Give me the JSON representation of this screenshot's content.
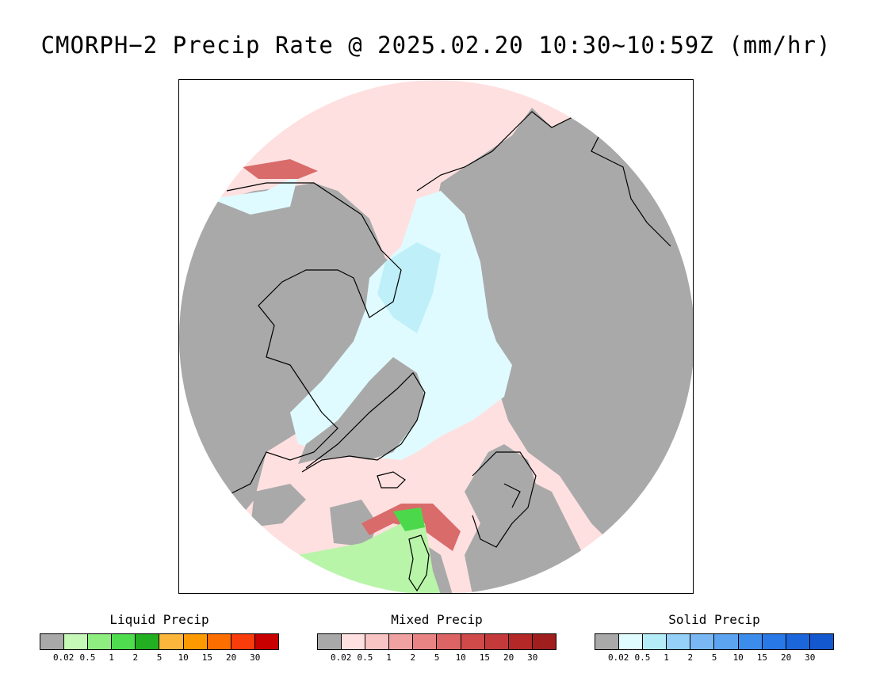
{
  "title": "CMORPH−2 Precip Rate @ 2025.02.20 10:30~10:59Z (mm/hr)",
  "map": {
    "colors": {
      "no_data_gray": "#a9a9a9",
      "mixed_light": "#ffe0e0",
      "mixed_mid": "#f4b2b2",
      "mixed_dark": "#d96b6b",
      "solid_light": "#e0fbff",
      "solid_mid": "#bfeff8",
      "liquid_light": "#b8f5a8",
      "liquid_mid": "#4bd94b",
      "coastline": "#000000"
    }
  },
  "legends": [
    {
      "title": "Liquid Precip",
      "colors": [
        "#a9a9a9",
        "#c6f8b8",
        "#8eee80",
        "#4fdc4f",
        "#22b022",
        "#fcb63c",
        "#fc9a00",
        "#fc6e00",
        "#f83c0c",
        "#c80000"
      ],
      "ticks": [
        "0.02",
        "0.5",
        "1",
        "2",
        "5",
        "10",
        "15",
        "20",
        "30"
      ]
    },
    {
      "title": "Mixed Precip",
      "colors": [
        "#a9a9a9",
        "#ffe0e0",
        "#f8c4c4",
        "#f0a2a2",
        "#e88484",
        "#dc6464",
        "#d04a4a",
        "#c43a3a",
        "#b42828",
        "#a01e1e"
      ],
      "ticks": [
        "0.02",
        "0.5",
        "1",
        "2",
        "5",
        "10",
        "15",
        "20",
        "30"
      ]
    },
    {
      "title": "Solid Precip",
      "colors": [
        "#a9a9a9",
        "#e0fcff",
        "#b4ecf8",
        "#94d0f8",
        "#7ab8f4",
        "#5ca4f0",
        "#3c8cec",
        "#2878e8",
        "#1c66dc",
        "#1458d0"
      ],
      "ticks": [
        "0.02",
        "0.5",
        "1",
        "2",
        "5",
        "10",
        "15",
        "20",
        "30"
      ]
    }
  ]
}
